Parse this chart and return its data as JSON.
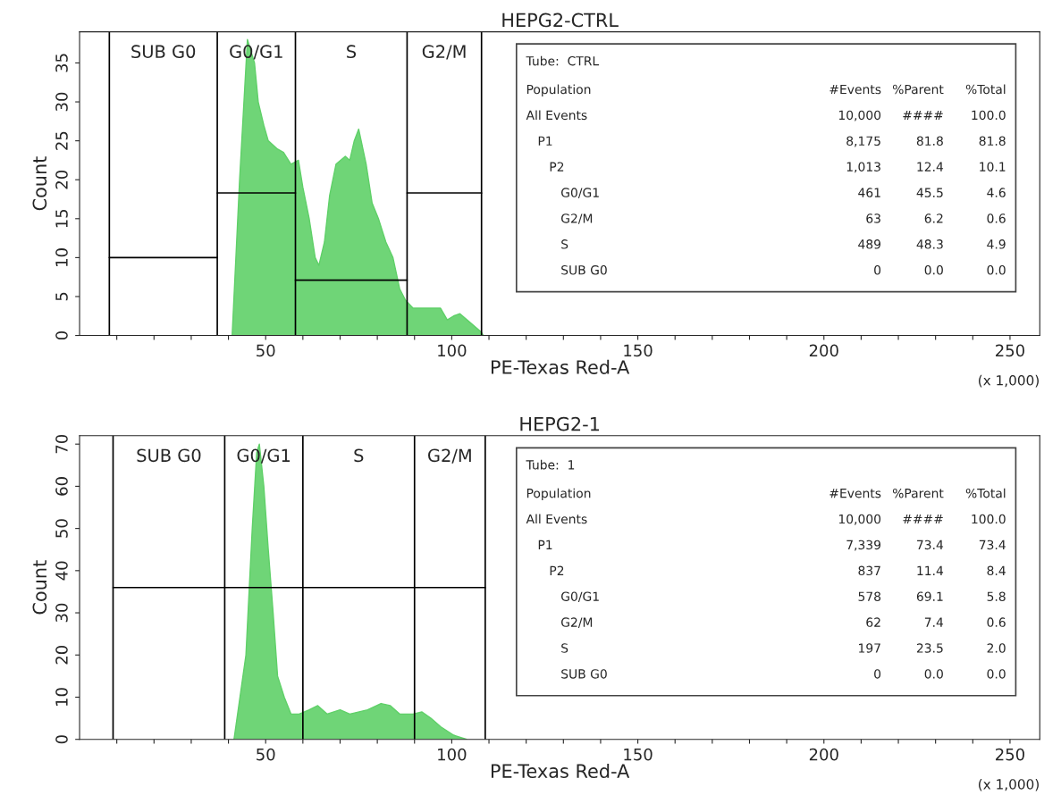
{
  "chart_data": [
    {
      "type": "area",
      "title": "HEPG2-CTRL",
      "xlabel": "PE-Texas Red-A",
      "ylabel": "Count",
      "xlim": [
        0,
        258
      ],
      "ylim": [
        0,
        39
      ],
      "xticks": [
        {
          "value": 10,
          "label": null
        },
        {
          "value": 20,
          "label": null
        },
        {
          "value": 30,
          "label": null
        },
        {
          "value": 40,
          "label": null
        },
        50,
        {
          "value": 60,
          "label": null
        },
        {
          "value": 70,
          "label": null
        },
        {
          "value": 80,
          "label": null
        },
        {
          "value": 90,
          "label": null
        },
        100,
        {
          "value": 110,
          "label": null
        },
        {
          "value": 120,
          "label": null
        },
        {
          "value": 130,
          "label": null
        },
        {
          "value": 140,
          "label": null
        },
        150,
        {
          "value": 160,
          "label": null
        },
        {
          "value": 170,
          "label": null
        },
        {
          "value": 180,
          "label": null
        },
        {
          "value": 190,
          "label": null
        },
        200,
        {
          "value": 210,
          "label": null
        },
        {
          "value": 220,
          "label": null
        },
        {
          "value": 230,
          "label": null
        },
        {
          "value": 240,
          "label": null
        },
        250
      ],
      "yticks": [
        0,
        5,
        10,
        15,
        20,
        25,
        30,
        35
      ],
      "grid": false,
      "legend": false,
      "series": [
        {
          "color": "#5fd068",
          "x": [
            41,
            43,
            45.1,
            47,
            48,
            49.5,
            50.7,
            53,
            54.8,
            56.8,
            58.8,
            60,
            61.7,
            63.3,
            64.3,
            65.8,
            67.2,
            68.9,
            71.4,
            72.6,
            73.8,
            75,
            77,
            78.6,
            80.3,
            82.3,
            84.2,
            86,
            87.6,
            89.6,
            97,
            98.8,
            100.5,
            102.2,
            104.1,
            107.8,
            108.5
          ],
          "values": [
            0,
            20,
            38,
            35,
            30,
            27,
            25,
            24,
            23.5,
            22,
            22.5,
            19,
            15,
            10,
            9,
            12,
            18,
            22,
            23,
            22.5,
            25,
            26.5,
            22,
            17,
            15,
            12,
            10,
            6,
            4.5,
            3.5,
            3.5,
            2,
            2.5,
            2.8,
            2,
            0.5,
            0
          ]
        },
        {
          "type": "line",
          "color": "#000000",
          "x": [
            8,
            37
          ],
          "values": [
            10,
            10
          ]
        },
        {
          "type": "line",
          "color": "#000000",
          "x": [
            37,
            58
          ],
          "values": [
            18.3,
            18.3
          ]
        },
        {
          "type": "line",
          "color": "#000000",
          "x": [
            58,
            88
          ],
          "values": [
            7.1,
            7.1
          ]
        },
        {
          "type": "line",
          "color": "#000000",
          "x": [
            88,
            108
          ],
          "values": [
            18.3,
            18.3
          ]
        }
      ],
      "ref_lines": [
        {
          "axis": "x",
          "value": 8,
          "label": "SUB G0"
        },
        {
          "axis": "x",
          "value": 37,
          "label": "G0/G1"
        },
        {
          "axis": "x",
          "value": 58,
          "label": "S"
        },
        {
          "axis": "x",
          "value": 88,
          "label": "G2/M"
        },
        {
          "axis": "x",
          "value": 108
        }
      ],
      "annotations": [
        "(x 1,000)",
        "Tube:  CTRL",
        "Population",
        "#Events",
        "%Parent",
        "%Total",
        "All Events",
        "10,000",
        "####",
        "100.0",
        "P1",
        "8,175",
        "81.8",
        "81.8",
        "P2",
        "1,013",
        "12.4",
        "10.1",
        "G0/G1",
        "461",
        "45.5",
        "4.6",
        "G2/M",
        "63",
        "6.2",
        "0.6",
        "S",
        "489",
        "48.3",
        "4.9",
        "SUB G0",
        "0",
        "0.0",
        "0.0"
      ]
    },
    {
      "type": "area",
      "title": "HEPG2-1",
      "xlabel": "PE-Texas Red-A",
      "ylabel": "Count",
      "xlim": [
        0,
        258
      ],
      "ylim": [
        0,
        72
      ],
      "xticks": [
        {
          "value": 10,
          "label": null
        },
        {
          "value": 20,
          "label": null
        },
        {
          "value": 30,
          "label": null
        },
        {
          "value": 40,
          "label": null
        },
        50,
        {
          "value": 60,
          "label": null
        },
        {
          "value": 70,
          "label": null
        },
        {
          "value": 80,
          "label": null
        },
        {
          "value": 90,
          "label": null
        },
        100,
        {
          "value": 110,
          "label": null
        },
        {
          "value": 120,
          "label": null
        },
        {
          "value": 130,
          "label": null
        },
        {
          "value": 140,
          "label": null
        },
        150,
        {
          "value": 160,
          "label": null
        },
        {
          "value": 170,
          "label": null
        },
        {
          "value": 180,
          "label": null
        },
        {
          "value": 190,
          "label": null
        },
        200,
        {
          "value": 210,
          "label": null
        },
        {
          "value": 220,
          "label": null
        },
        {
          "value": 230,
          "label": null
        },
        {
          "value": 240,
          "label": null
        },
        250
      ],
      "yticks": [
        0,
        10,
        20,
        30,
        40,
        50,
        60,
        70
      ],
      "grid": false,
      "legend": false,
      "series": [
        {
          "color": "#5fd068",
          "x": [
            41.5,
            44.7,
            46.4,
            47.6,
            48.3,
            49.5,
            50.7,
            52,
            53.2,
            55,
            56.8,
            59,
            61.7,
            64,
            66.5,
            70,
            72.6,
            77.4,
            81,
            83.5,
            86,
            89.6,
            92,
            94.4,
            97,
            100.5,
            104
          ],
          "values": [
            0,
            20,
            50,
            68,
            70,
            60,
            45,
            30,
            15,
            10,
            6,
            6,
            7,
            8,
            6,
            7,
            6,
            7,
            8.5,
            8,
            6,
            6,
            6.5,
            5,
            3,
            1,
            0
          ]
        },
        {
          "type": "line",
          "color": "#000000",
          "x": [
            9,
            109
          ],
          "values": [
            36,
            36
          ]
        }
      ],
      "ref_lines": [
        {
          "axis": "x",
          "value": 9,
          "label": "SUB G0"
        },
        {
          "axis": "x",
          "value": 39,
          "label": "G0/G1"
        },
        {
          "axis": "x",
          "value": 60,
          "label": "S"
        },
        {
          "axis": "x",
          "value": 90,
          "label": "G2/M"
        },
        {
          "axis": "x",
          "value": 109
        }
      ],
      "annotations": [
        "(x 1,000)",
        "Tube:  1",
        "Population",
        "#Events",
        "%Parent",
        "%Total",
        "All Events",
        "10,000",
        "####",
        "100.0",
        "P1",
        "7,339",
        "73.4",
        "73.4",
        "P2",
        "837",
        "11.4",
        "8.4",
        "G0/G1",
        "578",
        "69.1",
        "5.8",
        "G2/M",
        "62",
        "7.4",
        "0.6",
        "S",
        "197",
        "23.5",
        "2.0",
        "SUB G0",
        "0",
        "0.0",
        "0.0"
      ]
    }
  ]
}
